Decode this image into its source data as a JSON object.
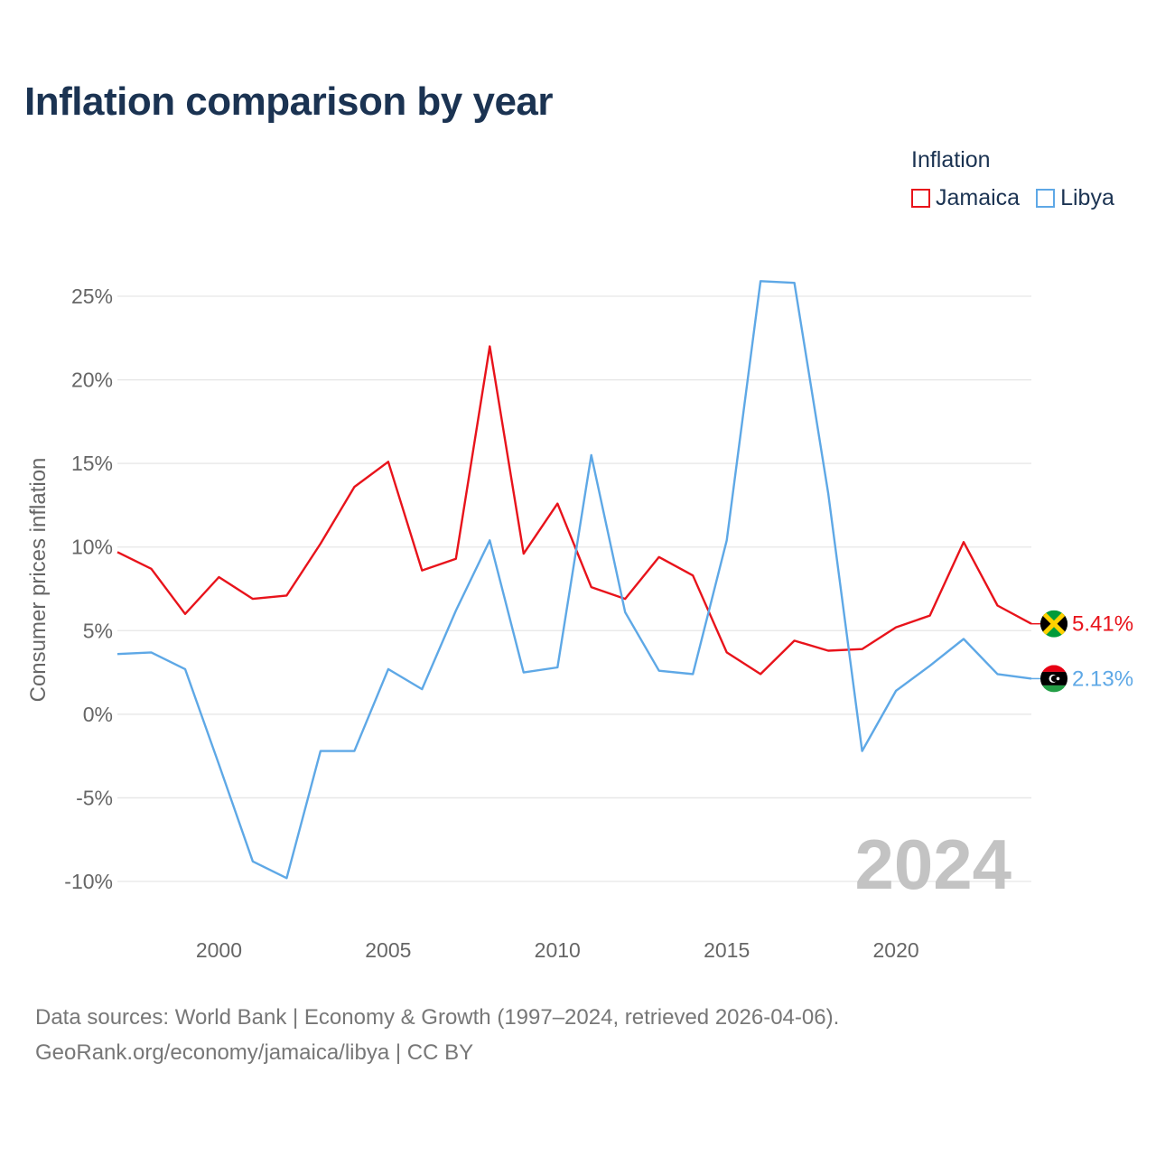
{
  "title": "Inflation comparison by year",
  "legend": {
    "title": "Inflation",
    "items": [
      {
        "label": "Jamaica",
        "color": "#e8131b"
      },
      {
        "label": "Libya",
        "color": "#5ea8e6"
      }
    ]
  },
  "chart_data": {
    "type": "line",
    "title": "Inflation comparison by year",
    "ylabel": "Consumer prices inflation",
    "xlabel": "",
    "xlim": [
      1997,
      2024
    ],
    "ylim": [
      -12,
      26
    ],
    "x": [
      1997,
      1998,
      1999,
      2000,
      2001,
      2002,
      2003,
      2004,
      2005,
      2006,
      2007,
      2008,
      2009,
      2010,
      2011,
      2012,
      2013,
      2014,
      2015,
      2016,
      2017,
      2018,
      2019,
      2020,
      2021,
      2022,
      2023,
      2024
    ],
    "x_ticks": [
      2000,
      2005,
      2010,
      2015,
      2020
    ],
    "x_tick_labels": [
      "2000",
      "2005",
      "2010",
      "2015",
      "2020"
    ],
    "y_ticks": [
      25,
      20,
      15,
      10,
      5,
      0,
      -5,
      -10
    ],
    "y_tick_labels": [
      "25%",
      "20%",
      "15%",
      "10%",
      "5%",
      "0%",
      "-5%",
      "-10%"
    ],
    "grid": true,
    "legend_position": "top-right",
    "series": [
      {
        "name": "Jamaica",
        "color": "#e8131b",
        "values": [
          9.7,
          8.7,
          6.0,
          8.2,
          6.9,
          7.1,
          10.2,
          13.6,
          15.1,
          8.6,
          9.3,
          22.0,
          9.6,
          12.6,
          7.6,
          6.9,
          9.4,
          8.3,
          3.7,
          2.4,
          4.4,
          3.8,
          3.9,
          5.2,
          5.9,
          10.3,
          6.5,
          5.41
        ],
        "end_label": "5.41%",
        "flag": "jamaica-flag-icon"
      },
      {
        "name": "Libya",
        "color": "#5ea8e6",
        "values": [
          3.6,
          3.7,
          2.7,
          -3.0,
          -8.8,
          -9.8,
          -2.2,
          -2.2,
          2.7,
          1.5,
          6.2,
          10.4,
          2.5,
          2.8,
          15.5,
          6.1,
          2.6,
          2.4,
          10.4,
          25.9,
          25.8,
          13.2,
          -2.2,
          1.4,
          2.9,
          4.5,
          2.4,
          2.13
        ],
        "end_label": "2.13%",
        "flag": "libya-flag-icon"
      }
    ],
    "annotations": [
      {
        "text": "2024",
        "position": "bottom-right"
      }
    ]
  },
  "footer": {
    "line1": "Data sources: World Bank | Economy & Growth (1997–2024, retrieved 2026-04-06).",
    "line2": "GeoRank.org/economy/jamaica/libya | CC BY"
  }
}
